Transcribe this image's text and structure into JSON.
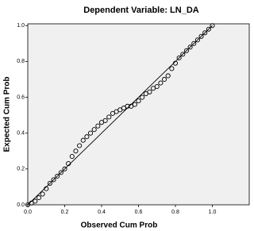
{
  "chart_data": {
    "type": "scatter",
    "title": "Dependent Variable: LN_DA",
    "x_label": "Observed Cum Prob",
    "y_label": "Expected Cum Prob",
    "x": [
      0.0,
      0.02,
      0.04,
      0.06,
      0.08,
      0.1,
      0.12,
      0.14,
      0.16,
      0.18,
      0.2,
      0.22,
      0.24,
      0.26,
      0.28,
      0.3,
      0.32,
      0.34,
      0.36,
      0.38,
      0.4,
      0.42,
      0.44,
      0.46,
      0.48,
      0.5,
      0.52,
      0.54,
      0.56,
      0.58,
      0.6,
      0.62,
      0.64,
      0.66,
      0.68,
      0.7,
      0.72,
      0.74,
      0.76,
      0.78,
      0.8,
      0.82,
      0.84,
      0.86,
      0.88,
      0.9,
      0.92,
      0.94,
      0.96,
      0.98,
      1.0
    ],
    "values": [
      0.0,
      0.01,
      0.02,
      0.04,
      0.06,
      0.09,
      0.12,
      0.14,
      0.16,
      0.18,
      0.2,
      0.23,
      0.27,
      0.3,
      0.33,
      0.36,
      0.38,
      0.4,
      0.42,
      0.44,
      0.46,
      0.47,
      0.49,
      0.51,
      0.52,
      0.53,
      0.54,
      0.55,
      0.55,
      0.56,
      0.58,
      0.6,
      0.62,
      0.63,
      0.65,
      0.66,
      0.68,
      0.7,
      0.72,
      0.76,
      0.79,
      0.82,
      0.84,
      0.86,
      0.88,
      0.9,
      0.92,
      0.94,
      0.96,
      0.98,
      1.0
    ],
    "color": "#000000",
    "reference_line": {
      "x": [
        0,
        1
      ],
      "y": [
        0,
        1
      ]
    },
    "xlim": [
      0,
      1.2
    ],
    "ylim": [
      0,
      1.01
    ],
    "xticks": [
      {
        "value": 0,
        "label": "0.0"
      },
      {
        "value": 0.2,
        "label": "0.2"
      },
      {
        "value": 0.4,
        "label": "0.4"
      },
      {
        "value": 0.6,
        "label": "0.6"
      },
      {
        "value": 0.8,
        "label": "0.8"
      },
      {
        "value": 1,
        "label": "1.0"
      }
    ],
    "yticks": [
      {
        "value": 0,
        "label": "0.0"
      },
      {
        "value": 0.2,
        "label": "0.2"
      },
      {
        "value": 0.4,
        "label": "0.4"
      },
      {
        "value": 0.6,
        "label": "0.6"
      },
      {
        "value": 0.8,
        "label": "0.8"
      },
      {
        "value": 1,
        "label": "1.0"
      }
    ]
  }
}
